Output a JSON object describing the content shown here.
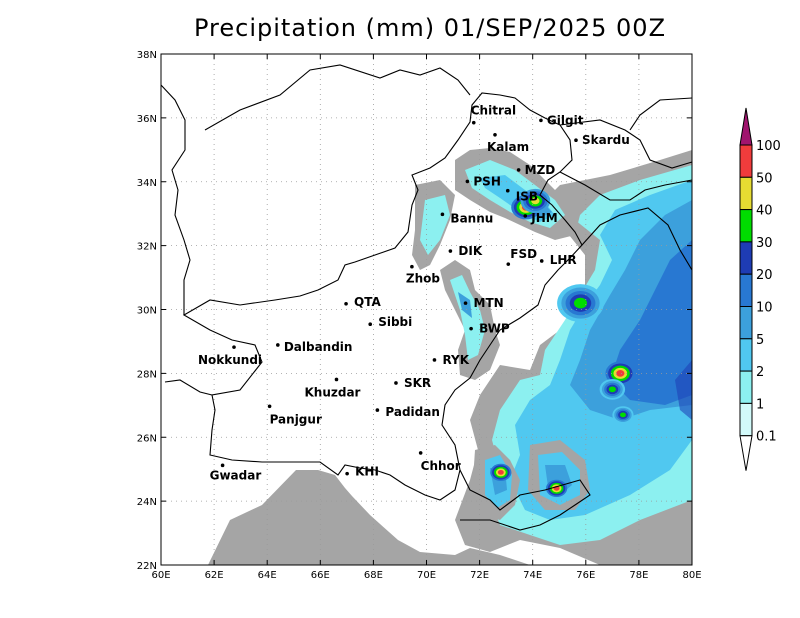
{
  "title": "Precipitation (mm) 01/SEP/2025 00Z",
  "axes": {
    "x_ticks": [
      "60E",
      "62E",
      "64E",
      "66E",
      "68E",
      "70E",
      "72E",
      "74E",
      "76E",
      "78E",
      "80E"
    ],
    "y_ticks": [
      "22N",
      "24N",
      "26N",
      "28N",
      "30N",
      "32N",
      "34N",
      "36N",
      "38N"
    ],
    "lon_range": [
      60,
      80
    ],
    "lat_range": [
      22,
      38
    ],
    "grid": "dotted"
  },
  "colorbar": {
    "levels": [
      "0.1",
      "1",
      "2",
      "5",
      "10",
      "20",
      "30",
      "40",
      "50",
      "100"
    ],
    "colors": [
      "#a5a5a5",
      "#d2fafa",
      "#8cf0f0",
      "#50c8f0",
      "#3ca0dc",
      "#2878d2",
      "#1e3cb4",
      "#00dc00",
      "#e6dc32",
      "#f03c3c",
      "#a0146e"
    ],
    "extend": "both"
  },
  "cities": [
    {
      "name": "Chitral",
      "lat": 35.85,
      "lon": 71.78
    },
    {
      "name": "Gilgit",
      "lat": 35.92,
      "lon": 74.31
    },
    {
      "name": "Kalam",
      "lat": 35.47,
      "lon": 72.58
    },
    {
      "name": "Skardu",
      "lat": 35.3,
      "lon": 75.63
    },
    {
      "name": "MZD",
      "lat": 34.37,
      "lon": 73.47
    },
    {
      "name": "PSH",
      "lat": 34.01,
      "lon": 71.54
    },
    {
      "name": "ISB",
      "lat": 33.72,
      "lon": 73.06
    },
    {
      "name": "JHM",
      "lat": 32.93,
      "lon": 73.72
    },
    {
      "name": "Bannu",
      "lat": 32.98,
      "lon": 70.6
    },
    {
      "name": "DIK",
      "lat": 31.83,
      "lon": 70.9
    },
    {
      "name": "FSD",
      "lat": 31.42,
      "lon": 73.08
    },
    {
      "name": "LHR",
      "lat": 31.52,
      "lon": 74.34
    },
    {
      "name": "Zhob",
      "lat": 31.34,
      "lon": 69.45
    },
    {
      "name": "QTA",
      "lat": 30.18,
      "lon": 66.97
    },
    {
      "name": "MTN",
      "lat": 30.2,
      "lon": 71.47
    },
    {
      "name": "Sibbi",
      "lat": 29.54,
      "lon": 67.88
    },
    {
      "name": "BWP",
      "lat": 29.4,
      "lon": 71.68
    },
    {
      "name": "Dalbandin",
      "lat": 28.89,
      "lon": 64.4
    },
    {
      "name": "Nokkundi",
      "lat": 28.82,
      "lon": 62.75
    },
    {
      "name": "RYK",
      "lat": 28.42,
      "lon": 70.3
    },
    {
      "name": "Khuzdar",
      "lat": 27.81,
      "lon": 66.61
    },
    {
      "name": "SKR",
      "lat": 27.7,
      "lon": 68.85
    },
    {
      "name": "Padidan",
      "lat": 26.85,
      "lon": 68.15
    },
    {
      "name": "Panjgur",
      "lat": 26.97,
      "lon": 64.09
    },
    {
      "name": "Chhor",
      "lat": 25.51,
      "lon": 69.78
    },
    {
      "name": "KHI",
      "lat": 24.86,
      "lon": 67.01
    },
    {
      "name": "Gwadar",
      "lat": 25.12,
      "lon": 62.32
    }
  ],
  "precip_cells": [
    {
      "lat": 33.2,
      "lon": 73.75,
      "level": 9,
      "r": 0.35
    },
    {
      "lat": 30.0,
      "lon": 75.7,
      "level": 9,
      "r": 0.3
    },
    {
      "lat": 28.0,
      "lon": 77.3,
      "level": 9,
      "r": 0.35
    },
    {
      "lat": 24.9,
      "lon": 72.8,
      "level": 9,
      "r": 0.25
    },
    {
      "lat": 24.4,
      "lon": 74.9,
      "level": 9,
      "r": 0.25
    },
    {
      "lat": 30.2,
      "lon": 75.8,
      "level": 7,
      "r": 0.55
    },
    {
      "lat": 27.5,
      "lon": 77.0,
      "level": 7,
      "r": 0.3
    },
    {
      "lat": 26.7,
      "lon": 77.4,
      "level": 7,
      "r": 0.25
    },
    {
      "lat": 33.4,
      "lon": 74.1,
      "level": 8,
      "r": 0.35
    }
  ]
}
